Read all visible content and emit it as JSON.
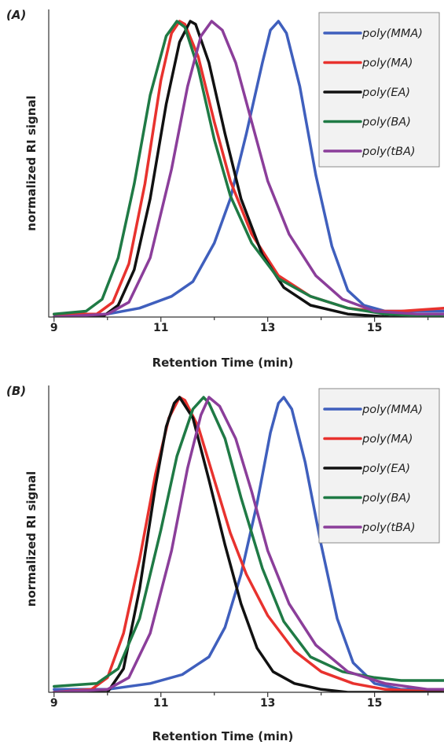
{
  "chart_data": [
    {
      "type": "line",
      "panel_label": "(A)",
      "xlabel": "Retention Time (min)",
      "ylabel": "normalized RI signal",
      "xlim": [
        8.9,
        16.3
      ],
      "ylim": [
        0,
        1.04
      ],
      "xticks": [
        9,
        11,
        13,
        15
      ],
      "yticks": [],
      "grid": false,
      "legend_position": "top-right",
      "series": [
        {
          "name": "poly(MMA)",
          "color": "#3f5fbd",
          "x": [
            9.0,
            10.0,
            10.6,
            11.2,
            11.6,
            12.0,
            12.3,
            12.6,
            12.9,
            13.05,
            13.2,
            13.35,
            13.6,
            13.9,
            14.2,
            14.5,
            14.8,
            15.2,
            16.3
          ],
          "y": [
            0.0,
            0.01,
            0.03,
            0.07,
            0.12,
            0.25,
            0.4,
            0.62,
            0.86,
            0.97,
            1.0,
            0.96,
            0.78,
            0.48,
            0.24,
            0.09,
            0.04,
            0.02,
            0.02
          ]
        },
        {
          "name": "poly(MA)",
          "color": "#e8322e",
          "x": [
            9.0,
            9.8,
            10.1,
            10.4,
            10.7,
            11.0,
            11.2,
            11.35,
            11.45,
            11.7,
            12.0,
            12.3,
            12.7,
            13.2,
            13.8,
            14.5,
            15.0,
            15.5,
            16.3
          ],
          "y": [
            0.01,
            0.01,
            0.05,
            0.18,
            0.45,
            0.8,
            0.96,
            1.0,
            0.99,
            0.88,
            0.66,
            0.46,
            0.28,
            0.14,
            0.07,
            0.03,
            0.02,
            0.02,
            0.03
          ]
        },
        {
          "name": "poly(EA)",
          "color": "#111111",
          "x": [
            9.0,
            9.9,
            10.2,
            10.5,
            10.8,
            11.1,
            11.35,
            11.55,
            11.65,
            11.9,
            12.2,
            12.5,
            12.9,
            13.3,
            13.8,
            14.5,
            15.3,
            16.3
          ],
          "y": [
            0.0,
            0.0,
            0.04,
            0.16,
            0.4,
            0.72,
            0.93,
            1.0,
            0.99,
            0.86,
            0.62,
            0.4,
            0.21,
            0.1,
            0.04,
            0.01,
            0.0,
            0.0
          ]
        },
        {
          "name": "poly(BA)",
          "color": "#1f7a45",
          "x": [
            9.0,
            9.6,
            9.9,
            10.2,
            10.5,
            10.8,
            11.1,
            11.3,
            11.45,
            11.7,
            12.0,
            12.3,
            12.7,
            13.2,
            13.8,
            14.5,
            15.2,
            16.3
          ],
          "y": [
            0.01,
            0.02,
            0.06,
            0.2,
            0.45,
            0.75,
            0.95,
            1.0,
            0.98,
            0.84,
            0.6,
            0.41,
            0.25,
            0.13,
            0.07,
            0.03,
            0.01,
            0.0
          ]
        },
        {
          "name": "poly(tBA)",
          "color": "#8b3e9a",
          "x": [
            9.0,
            10.0,
            10.4,
            10.8,
            11.2,
            11.5,
            11.75,
            11.95,
            12.15,
            12.4,
            12.7,
            13.0,
            13.4,
            13.9,
            14.4,
            15.0,
            15.8,
            16.3
          ],
          "y": [
            0.0,
            0.01,
            0.05,
            0.2,
            0.5,
            0.78,
            0.95,
            1.0,
            0.97,
            0.86,
            0.66,
            0.46,
            0.28,
            0.14,
            0.06,
            0.02,
            0.01,
            0.01
          ]
        }
      ]
    },
    {
      "type": "line",
      "panel_label": "(B)",
      "xlabel": "Retention Time (min)",
      "ylabel": "normalized RI signal",
      "xlim": [
        8.9,
        16.3
      ],
      "ylim": [
        0,
        1.04
      ],
      "xticks": [
        9,
        11,
        13,
        15
      ],
      "yticks": [],
      "grid": false,
      "legend_position": "top-right",
      "series": [
        {
          "name": "poly(MMA)",
          "color": "#3f5fbd",
          "x": [
            9.0,
            10.0,
            10.8,
            11.4,
            11.9,
            12.2,
            12.5,
            12.8,
            13.05,
            13.2,
            13.3,
            13.45,
            13.7,
            14.0,
            14.3,
            14.6,
            15.0,
            15.5,
            16.3
          ],
          "y": [
            0.01,
            0.01,
            0.03,
            0.06,
            0.12,
            0.22,
            0.4,
            0.64,
            0.88,
            0.98,
            1.0,
            0.96,
            0.78,
            0.5,
            0.25,
            0.1,
            0.03,
            0.01,
            0.01
          ]
        },
        {
          "name": "poly(MA)",
          "color": "#e8322e",
          "x": [
            9.0,
            9.7,
            10.0,
            10.3,
            10.6,
            10.9,
            11.15,
            11.35,
            11.45,
            11.7,
            12.0,
            12.3,
            12.6,
            13.0,
            13.5,
            14.0,
            14.6,
            15.2,
            16.3
          ],
          "y": [
            0.0,
            0.01,
            0.05,
            0.2,
            0.45,
            0.74,
            0.93,
            1.0,
            0.99,
            0.9,
            0.72,
            0.54,
            0.4,
            0.26,
            0.14,
            0.07,
            0.03,
            0.01,
            0.0
          ]
        },
        {
          "name": "poly(EA)",
          "color": "#111111",
          "x": [
            9.0,
            10.0,
            10.3,
            10.6,
            10.9,
            11.1,
            11.25,
            11.35,
            11.6,
            11.9,
            12.2,
            12.5,
            12.8,
            13.1,
            13.5,
            14.0,
            14.5,
            16.3
          ],
          "y": [
            0.0,
            0.0,
            0.08,
            0.35,
            0.7,
            0.9,
            0.98,
            1.0,
            0.93,
            0.72,
            0.5,
            0.3,
            0.15,
            0.07,
            0.03,
            0.01,
            0.0,
            0.0
          ]
        },
        {
          "name": "poly(BA)",
          "color": "#1f7a45",
          "x": [
            9.0,
            9.8,
            10.2,
            10.6,
            11.0,
            11.3,
            11.6,
            11.8,
            11.9,
            12.2,
            12.5,
            12.9,
            13.3,
            13.8,
            14.4,
            15.0,
            15.5,
            16.3
          ],
          "y": [
            0.02,
            0.03,
            0.08,
            0.25,
            0.55,
            0.8,
            0.96,
            1.0,
            0.98,
            0.86,
            0.66,
            0.42,
            0.24,
            0.12,
            0.07,
            0.05,
            0.04,
            0.04
          ]
        },
        {
          "name": "poly(tBA)",
          "color": "#8b3e9a",
          "x": [
            9.0,
            10.0,
            10.4,
            10.8,
            11.2,
            11.5,
            11.75,
            11.9,
            12.1,
            12.4,
            12.7,
            13.0,
            13.4,
            13.9,
            14.5,
            15.2,
            16.0,
            16.3
          ],
          "y": [
            0.0,
            0.01,
            0.05,
            0.2,
            0.48,
            0.76,
            0.94,
            1.0,
            0.97,
            0.86,
            0.68,
            0.48,
            0.3,
            0.16,
            0.07,
            0.03,
            0.01,
            0.01
          ]
        }
      ]
    }
  ]
}
